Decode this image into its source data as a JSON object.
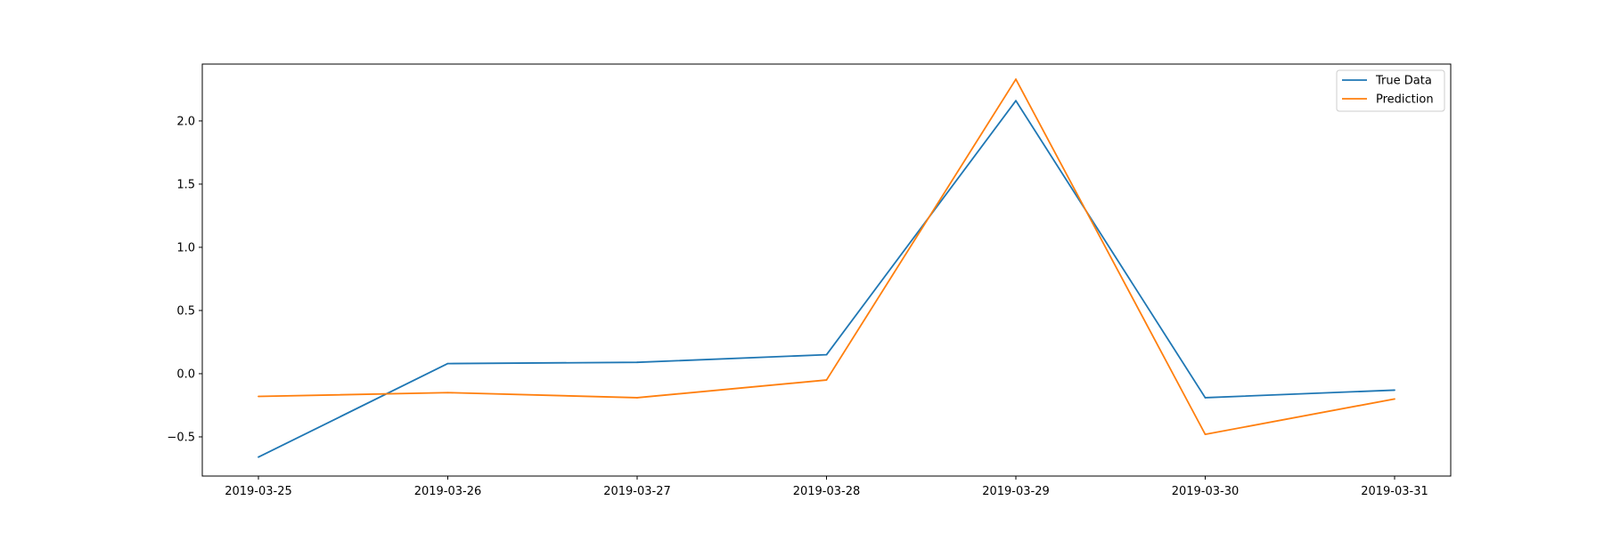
{
  "chart_data": {
    "type": "line",
    "title": "",
    "xlabel": "",
    "ylabel": "",
    "x": [
      "2019-03-25",
      "2019-03-26",
      "2019-03-27",
      "2019-03-28",
      "2019-03-29",
      "2019-03-30",
      "2019-03-31"
    ],
    "series": [
      {
        "name": "True Data",
        "color": "#1f77b4",
        "values": [
          -0.66,
          0.08,
          0.09,
          0.15,
          2.16,
          -0.19,
          -0.13
        ]
      },
      {
        "name": "Prediction",
        "color": "#ff7f0e",
        "values": [
          -0.18,
          -0.15,
          -0.19,
          -0.05,
          2.33,
          -0.48,
          -0.2
        ]
      }
    ],
    "ylim": [
      -0.81,
      2.45
    ],
    "yticks": [
      {
        "value": -0.5,
        "label": "−0.5"
      },
      {
        "value": 0.0,
        "label": "0.0"
      },
      {
        "value": 0.5,
        "label": "0.5"
      },
      {
        "value": 1.0,
        "label": "1.0"
      },
      {
        "value": 1.5,
        "label": "1.5"
      },
      {
        "value": 2.0,
        "label": "2.0"
      }
    ],
    "grid": false,
    "legend_position": "top-right"
  }
}
